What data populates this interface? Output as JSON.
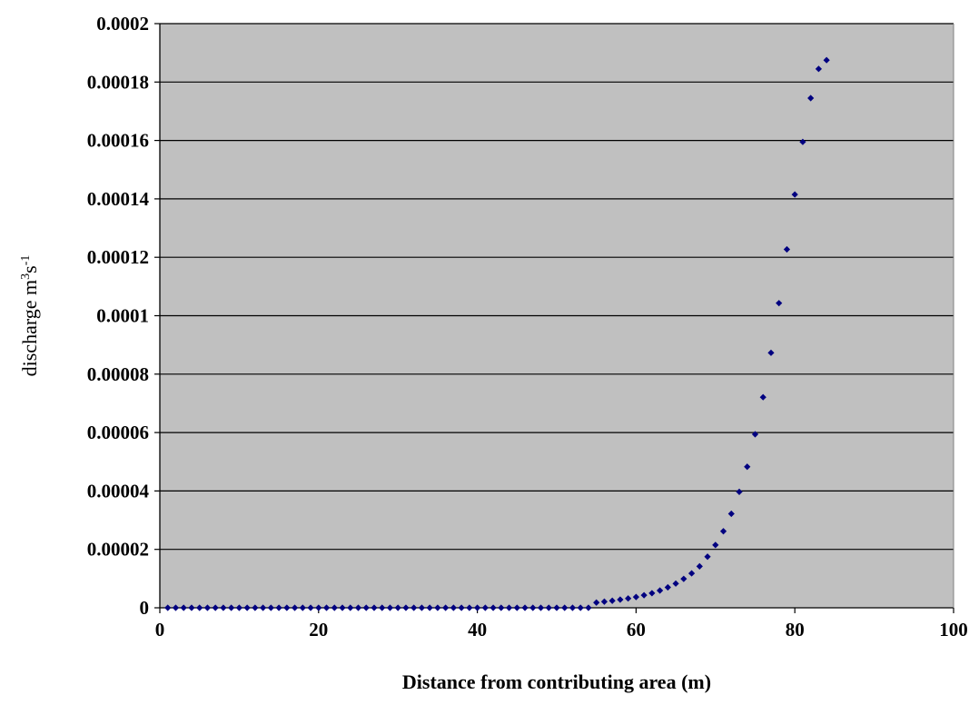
{
  "chart_data": {
    "type": "scatter",
    "title": "",
    "xlabel": "Distance from contributing area (m)",
    "ylabel": {
      "base": "discharge m",
      "sup1": "3",
      "mid": "s",
      "sup2": "-1"
    },
    "xlim": [
      0,
      100
    ],
    "ylim": [
      0,
      0.0002
    ],
    "xticks": [
      "0",
      "20",
      "40",
      "60",
      "80",
      "100"
    ],
    "yticks": [
      "0",
      "0.00002",
      "0.00004",
      "0.00006",
      "0.00008",
      "0.0001",
      "0.00012",
      "0.00014",
      "0.00016",
      "0.00018",
      "0.0002"
    ],
    "grid": "horizontal",
    "plot_background": "#c0c0c0",
    "marker": "diamond",
    "marker_color": "#000080",
    "series": [
      {
        "x": [
          1,
          2,
          3,
          4,
          5,
          6,
          7,
          8,
          9,
          10,
          11,
          12,
          13,
          14,
          15,
          16,
          17,
          18,
          19,
          20,
          21,
          22,
          23,
          24,
          25,
          26,
          27,
          28,
          29,
          30,
          31,
          32,
          33,
          34,
          35,
          36,
          37,
          38,
          39,
          40,
          41,
          42,
          43,
          44,
          45,
          46,
          47,
          48,
          49,
          50,
          51,
          52,
          53,
          54,
          55,
          56,
          57,
          58,
          59,
          60,
          61,
          62,
          63,
          64,
          65,
          66,
          67,
          68,
          69,
          70,
          71,
          72,
          73,
          74,
          75,
          76,
          77,
          78,
          79,
          80,
          81,
          82,
          83,
          84
        ],
        "y": [
          0,
          0,
          0,
          0,
          0,
          0,
          0,
          0,
          0,
          0,
          0,
          0,
          0,
          0,
          0,
          0,
          0,
          0,
          0,
          0,
          0,
          0,
          0,
          0,
          0,
          0,
          0,
          0,
          0,
          0,
          0,
          0,
          0,
          0,
          0,
          0,
          0,
          0,
          0,
          0,
          0,
          0,
          0,
          0,
          0,
          0,
          0,
          0,
          0,
          0,
          0,
          0,
          0,
          0,
          1.8e-06,
          2.1e-06,
          2.4e-06,
          2.8e-06,
          3.2e-06,
          3.7e-06,
          4.3e-06,
          5e-06,
          5.9e-06,
          7e-06,
          8.3e-06,
          9.9e-06,
          1.18e-05,
          1.42e-05,
          1.75e-05,
          2.15e-05,
          2.62e-05,
          3.22e-05,
          3.97e-05,
          4.83e-05,
          5.94e-05,
          7.21e-05,
          8.73e-05,
          0.0001043,
          0.0001227,
          0.0001415,
          0.0001595,
          0.0001745,
          0.0001845,
          0.0001875
        ]
      }
    ]
  }
}
